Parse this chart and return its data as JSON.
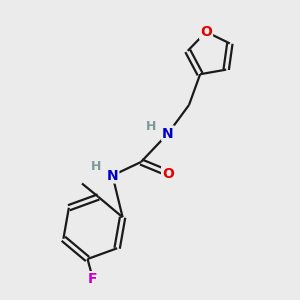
{
  "background_color": "#ebebeb",
  "bond_color": "#1a1a1a",
  "atom_colors": {
    "O": "#e60000",
    "N": "#0000cc",
    "F": "#cc00cc",
    "H": "#7a9a9a",
    "C": "#1a1a1a"
  },
  "figsize": [
    3.0,
    3.0
  ],
  "dpi": 100,
  "xlim": [
    0,
    10
  ],
  "ylim": [
    0,
    10
  ]
}
